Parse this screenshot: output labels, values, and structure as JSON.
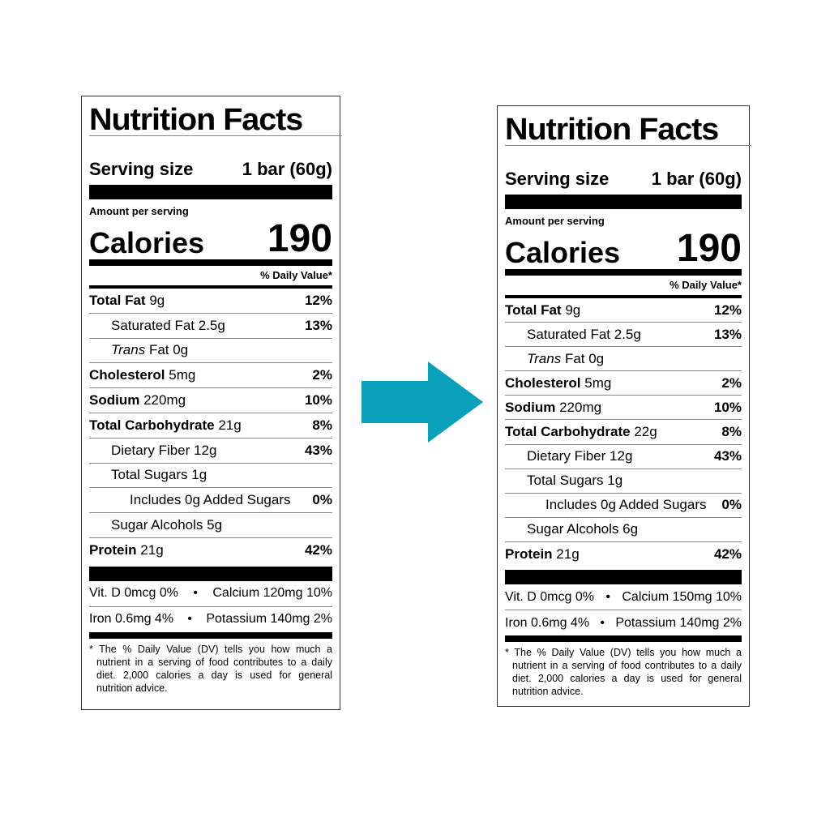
{
  "arrow_color": "#0a9fba",
  "labels": [
    {
      "title": "Nutrition Facts",
      "serving_label": "Serving size",
      "serving_value": "1 bar (60g)",
      "amount_per_serving": "Amount per serving",
      "calories_label": "Calories",
      "calories_value": "190",
      "dv_header": "% Daily Value*",
      "rows": [
        {
          "label": "Total Fat",
          "amount": "9g",
          "dv": "12%",
          "bold": true,
          "indent": 0
        },
        {
          "label": "Saturated Fat",
          "amount": "2.5g",
          "dv": "13%",
          "bold": false,
          "indent": 1
        },
        {
          "label": "Trans",
          "amount": "Fat 0g",
          "dv": "",
          "bold": false,
          "italic": true,
          "indent": 1
        },
        {
          "label": "Cholesterol",
          "amount": "5mg",
          "dv": "2%",
          "bold": true,
          "indent": 0
        },
        {
          "label": "Sodium",
          "amount": "220mg",
          "dv": "10%",
          "bold": true,
          "indent": 0
        },
        {
          "label": "Total Carbohydrate",
          "amount": "21g",
          "dv": "8%",
          "bold": true,
          "indent": 0
        },
        {
          "label": "Dietary Fiber",
          "amount": "12g",
          "dv": "43%",
          "bold": false,
          "indent": 1
        },
        {
          "label": "Total Sugars",
          "amount": "1g",
          "dv": "",
          "bold": false,
          "indent": 1
        },
        {
          "label": "Includes 0g Added Sugars",
          "amount": "",
          "dv": "0%",
          "bold": false,
          "indent": 2
        },
        {
          "label": "Sugar Alcohols",
          "amount": "5g",
          "dv": "",
          "bold": false,
          "indent": 1
        },
        {
          "label": "Protein",
          "amount": "21g",
          "dv": "42%",
          "bold": true,
          "indent": 0
        }
      ],
      "vitamins": [
        {
          "left": "Vit. D 0mcg 0%",
          "right": "Calcium 120mg 10%"
        },
        {
          "left": "Iron 0.6mg 4%",
          "right": "Potassium 140mg 2%"
        }
      ],
      "bullet": "•",
      "footnote": "* The % Daily Value (DV) tells you how much a nutrient in a serving of food contributes to a daily diet. 2,000 calories a day is used for general nutrition advice."
    },
    {
      "title": "Nutrition Facts",
      "serving_label": "Serving size",
      "serving_value": "1 bar (60g)",
      "amount_per_serving": "Amount per serving",
      "calories_label": "Calories",
      "calories_value": "190",
      "dv_header": "% Daily Value*",
      "rows": [
        {
          "label": "Total Fat",
          "amount": "9g",
          "dv": "12%",
          "bold": true,
          "indent": 0
        },
        {
          "label": "Saturated Fat",
          "amount": "2.5g",
          "dv": "13%",
          "bold": false,
          "indent": 1
        },
        {
          "label": "Trans",
          "amount": "Fat 0g",
          "dv": "",
          "bold": false,
          "italic": true,
          "indent": 1
        },
        {
          "label": "Cholesterol",
          "amount": "5mg",
          "dv": "2%",
          "bold": true,
          "indent": 0
        },
        {
          "label": "Sodium",
          "amount": "220mg",
          "dv": "10%",
          "bold": true,
          "indent": 0
        },
        {
          "label": "Total Carbohydrate",
          "amount": "22g",
          "dv": "8%",
          "bold": true,
          "indent": 0
        },
        {
          "label": "Dietary Fiber",
          "amount": "12g",
          "dv": "43%",
          "bold": false,
          "indent": 1
        },
        {
          "label": "Total Sugars",
          "amount": "1g",
          "dv": "",
          "bold": false,
          "indent": 1
        },
        {
          "label": "Includes 0g Added Sugars",
          "amount": "",
          "dv": "0%",
          "bold": false,
          "indent": 2
        },
        {
          "label": "Sugar Alcohols",
          "amount": "6g",
          "dv": "",
          "bold": false,
          "indent": 1
        },
        {
          "label": "Protein",
          "amount": "21g",
          "dv": "42%",
          "bold": true,
          "indent": 0
        }
      ],
      "vitamins": [
        {
          "left": "Vit. D 0mcg 0%",
          "right": "Calcium 150mg 10%"
        },
        {
          "left": "Iron 0.6mg 4%",
          "right": "Potassium 140mg 2%"
        }
      ],
      "bullet": "•",
      "footnote": "* The % Daily Value (DV) tells you how much a nutrient in a serving of food contributes to a daily diet. 2,000 calories a day is used for general nutrition advice."
    }
  ]
}
